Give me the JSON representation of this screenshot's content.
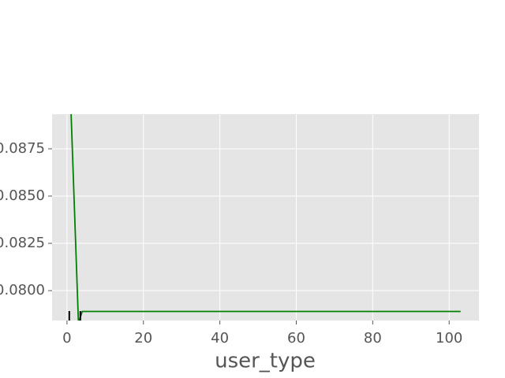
{
  "chart_data": {
    "type": "line",
    "x_label": "user_type",
    "x": [
      1,
      3,
      4,
      103
    ],
    "series": [
      {
        "color": "#008000",
        "values": [
          0.0898,
          0.0783,
          0.0789,
          0.0789
        ]
      }
    ],
    "rug_x": [
      0.6,
      3.5
    ],
    "rug_color": "#000000",
    "xlim": [
      -3.9,
      107.8
    ],
    "ylim": [
      0.07842,
      0.08933
    ],
    "xticks": [
      0,
      20,
      40,
      60,
      80,
      100
    ],
    "yticks": [
      {
        "value": 0.08,
        "label": "0.0800"
      },
      {
        "value": 0.0825,
        "label": "0.0825"
      },
      {
        "value": 0.085,
        "label": "0.0850"
      },
      {
        "value": 0.0875,
        "label": "0.0875"
      }
    ],
    "grid": true
  }
}
